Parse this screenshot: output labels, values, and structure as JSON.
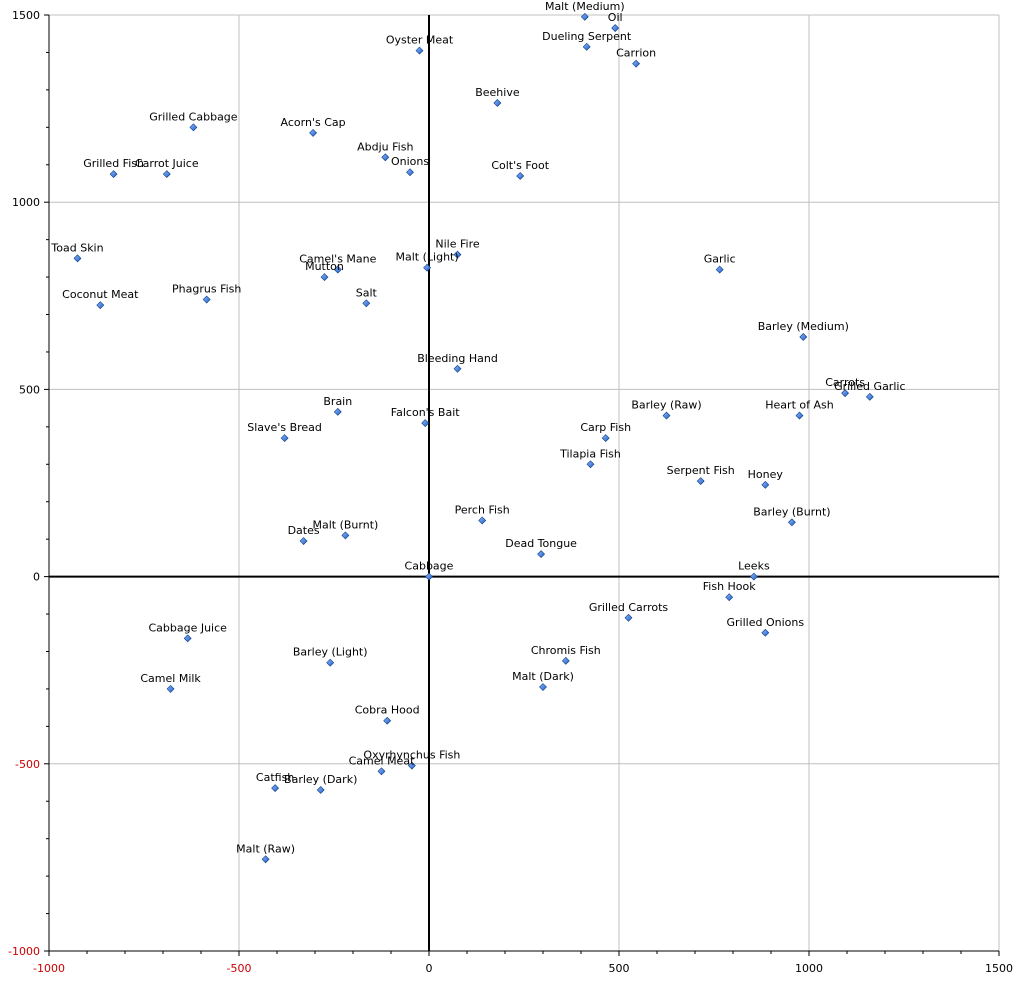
{
  "chart_data": {
    "type": "scatter",
    "title": "",
    "xlabel": "",
    "ylabel": "",
    "xlim": [
      -1000,
      1500
    ],
    "ylim": [
      -1000,
      1500
    ],
    "grid": true,
    "x_ticks": [
      -1000,
      -500,
      0,
      500,
      1000,
      1500
    ],
    "y_ticks": [
      -1000,
      -500,
      0,
      500,
      1000,
      1500
    ],
    "x_tick_labels": [
      "-1000",
      "-500",
      "0",
      "500",
      "1000",
      "1500"
    ],
    "y_tick_labels": [
      "-1000",
      "-500",
      "0",
      "500",
      "1000",
      "1500"
    ],
    "negative_tick_color": "#cc0000",
    "tick_color": "#000000",
    "grid_color": "#c0c0c0",
    "axis_color": "#000000",
    "marker_color": "#1f5fbf",
    "points": [
      {
        "label": "Malt (Medium)",
        "x": 410,
        "y": 1495
      },
      {
        "label": "Oil",
        "x": 490,
        "y": 1465
      },
      {
        "label": "Dueling Serpent",
        "x": 415,
        "y": 1415
      },
      {
        "label": "Carrion",
        "x": 545,
        "y": 1370
      },
      {
        "label": "Oyster Meat",
        "x": -25,
        "y": 1405
      },
      {
        "label": "Beehive",
        "x": 180,
        "y": 1265
      },
      {
        "label": "Grilled Cabbage",
        "x": -620,
        "y": 1200
      },
      {
        "label": "Acorn's Cap",
        "x": -305,
        "y": 1185
      },
      {
        "label": "Abdju Fish",
        "x": -115,
        "y": 1120
      },
      {
        "label": "Onions",
        "x": -50,
        "y": 1080
      },
      {
        "label": "Colt's Foot",
        "x": 240,
        "y": 1070
      },
      {
        "label": "Grilled Fish",
        "x": -830,
        "y": 1075
      },
      {
        "label": "Carrot Juice",
        "x": -690,
        "y": 1075
      },
      {
        "label": "Toad Skin",
        "x": -925,
        "y": 850
      },
      {
        "label": "Nile Fire",
        "x": 75,
        "y": 860
      },
      {
        "label": "Malt (Light)",
        "x": -5,
        "y": 825
      },
      {
        "label": "Camel's Mane",
        "x": -240,
        "y": 820
      },
      {
        "label": "Mutton",
        "x": -275,
        "y": 800
      },
      {
        "label": "Garlic",
        "x": 765,
        "y": 820
      },
      {
        "label": "Coconut Meat",
        "x": -865,
        "y": 725
      },
      {
        "label": "Phagrus Fish",
        "x": -585,
        "y": 740
      },
      {
        "label": "Salt",
        "x": -165,
        "y": 730
      },
      {
        "label": "Barley (Medium)",
        "x": 985,
        "y": 640
      },
      {
        "label": "Bleeding Hand",
        "x": 75,
        "y": 555
      },
      {
        "label": "Carrots",
        "x": 1095,
        "y": 490
      },
      {
        "label": "Grilled Garlic",
        "x": 1160,
        "y": 480
      },
      {
        "label": "Heart of Ash",
        "x": 975,
        "y": 430
      },
      {
        "label": "Barley (Raw)",
        "x": 625,
        "y": 430
      },
      {
        "label": "Brain",
        "x": -240,
        "y": 440
      },
      {
        "label": "Falcon's Bait",
        "x": -10,
        "y": 410
      },
      {
        "label": "Slave's Bread",
        "x": -380,
        "y": 370
      },
      {
        "label": "Carp Fish",
        "x": 465,
        "y": 370
      },
      {
        "label": "Tilapia Fish",
        "x": 425,
        "y": 300
      },
      {
        "label": "Serpent Fish",
        "x": 715,
        "y": 255
      },
      {
        "label": "Honey",
        "x": 885,
        "y": 245
      },
      {
        "label": "Barley (Burnt)",
        "x": 955,
        "y": 145
      },
      {
        "label": "Perch Fish",
        "x": 140,
        "y": 150
      },
      {
        "label": "Dead Tongue",
        "x": 295,
        "y": 60
      },
      {
        "label": "Dates",
        "x": -330,
        "y": 95
      },
      {
        "label": "Malt (Burnt)",
        "x": -220,
        "y": 110
      },
      {
        "label": "Cabbage",
        "x": 0,
        "y": 0
      },
      {
        "label": "Leeks",
        "x": 855,
        "y": 0
      },
      {
        "label": "Fish Hook",
        "x": 790,
        "y": -55
      },
      {
        "label": "Grilled Carrots",
        "x": 525,
        "y": -110
      },
      {
        "label": "Grilled Onions",
        "x": 885,
        "y": -150
      },
      {
        "label": "Cabbage Juice",
        "x": -635,
        "y": -165
      },
      {
        "label": "Chromis Fish",
        "x": 360,
        "y": -225
      },
      {
        "label": "Barley (Light)",
        "x": -260,
        "y": -230
      },
      {
        "label": "Malt (Dark)",
        "x": 300,
        "y": -295
      },
      {
        "label": "Camel Milk",
        "x": -680,
        "y": -300
      },
      {
        "label": "Cobra Hood",
        "x": -110,
        "y": -385
      },
      {
        "label": "Oxyrhynchus Fish",
        "x": -45,
        "y": -505
      },
      {
        "label": "Camel Meat",
        "x": -125,
        "y": -520
      },
      {
        "label": "Catfish",
        "x": -405,
        "y": -565
      },
      {
        "label": "Barley (Dark)",
        "x": -285,
        "y": -570
      },
      {
        "label": "Malt (Raw)",
        "x": -430,
        "y": -755
      }
    ]
  }
}
